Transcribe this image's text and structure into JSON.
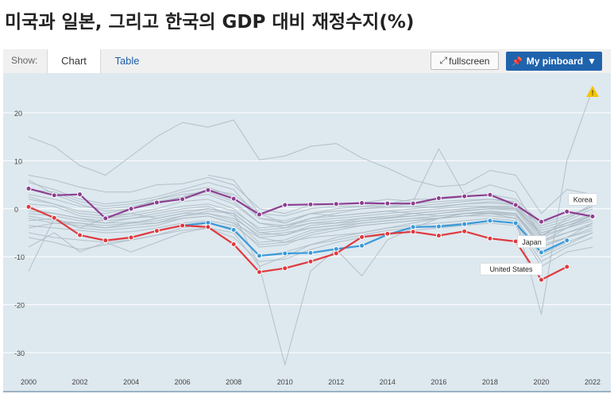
{
  "page": {
    "title": "미국과 일본, 그리고 한국의 GDP 대비 재정수지(%)"
  },
  "toolbar": {
    "show_label": "Show:",
    "tabs": [
      {
        "label": "Chart",
        "active": true
      },
      {
        "label": "Table",
        "active": false
      }
    ],
    "fullscreen_label": "fullscreen",
    "fullscreen_icon": "expand-icon",
    "pinboard_label": "My pinboard",
    "pinboard_icon": "pin-icon",
    "pinboard_caret": "▼",
    "pinboard_color": "#1f63ad"
  },
  "warning": {
    "icon": "warning-icon",
    "symbol": "!",
    "color": "#f5c400"
  },
  "chart_data": {
    "type": "line",
    "title": "",
    "xlabel": "",
    "ylabel": "",
    "xlim": [
      2000,
      2022
    ],
    "ylim": [
      -33,
      26
    ],
    "x_ticks": [
      2000,
      2002,
      2004,
      2006,
      2008,
      2010,
      2012,
      2014,
      2016,
      2018,
      2020,
      2022
    ],
    "y_ticks": [
      20,
      10,
      0,
      -10,
      -20,
      -30
    ],
    "grid": true,
    "background_color": "#dde8ef",
    "x": [
      2000,
      2001,
      2002,
      2003,
      2004,
      2005,
      2006,
      2007,
      2008,
      2009,
      2010,
      2011,
      2012,
      2013,
      2014,
      2015,
      2016,
      2017,
      2018,
      2019,
      2020,
      2021,
      2022
    ],
    "series": [
      {
        "name": "Korea",
        "color": "#8e3f91",
        "label_year": 2021,
        "values": [
          4.2,
          2.8,
          3.0,
          -2.0,
          0.0,
          1.3,
          2.0,
          3.9,
          2.1,
          -1.2,
          0.8,
          0.9,
          1.0,
          1.2,
          1.1,
          1.1,
          2.2,
          2.6,
          2.9,
          0.8,
          -2.7,
          -0.6,
          -1.6
        ]
      },
      {
        "name": "Japan",
        "color": "#3a9ad9",
        "label_year": 2020,
        "values": [
          null,
          null,
          null,
          null,
          null,
          null,
          -3.5,
          -2.9,
          -4.4,
          -9.8,
          -9.3,
          -9.2,
          -8.4,
          -7.7,
          -5.4,
          -3.8,
          -3.7,
          -3.2,
          -2.5,
          -3.0,
          -9.1,
          -6.6,
          null
        ]
      },
      {
        "name": "United States",
        "color": "#e0393e",
        "label_year": 2020,
        "values": [
          0.4,
          -1.9,
          -5.5,
          -6.6,
          -6.0,
          -4.6,
          -3.5,
          -3.8,
          -7.4,
          -13.2,
          -12.4,
          -11.0,
          -9.3,
          -5.9,
          -5.2,
          -4.8,
          -5.6,
          -4.7,
          -6.2,
          -6.8,
          -14.8,
          -12.1,
          null
        ]
      }
    ],
    "background_series": [
      {
        "values": [
          15,
          13,
          9,
          7,
          11,
          15,
          18,
          17,
          18.5,
          10.2,
          11,
          13,
          13.6,
          10.6,
          8.5,
          6,
          4.6,
          5,
          8,
          7,
          -1,
          4,
          3
        ]
      },
      {
        "values": [
          7,
          6,
          4.5,
          3.5,
          3.5,
          5,
          5.2,
          6.5,
          5,
          0,
          -1,
          0.8,
          1,
          1.2,
          2,
          1.5,
          12.5,
          3,
          5,
          3.5,
          -6,
          -2,
          1
        ]
      },
      {
        "values": [
          -13,
          -2,
          -4,
          -2,
          -1,
          -2,
          -1,
          0,
          -1,
          -12,
          -32.5,
          -13,
          -8.5,
          -14,
          -6.5,
          -4,
          -2,
          -1,
          -1,
          -2,
          -22,
          10,
          25
        ]
      },
      {
        "values": [
          -8,
          -5,
          -9,
          -7,
          -9,
          -7,
          -5,
          -4,
          -5,
          -12,
          -10,
          -7.5,
          -6,
          -5,
          -4,
          -3,
          -2,
          -1,
          -0.5,
          -1,
          -8,
          -6,
          -3
        ]
      },
      {
        "values": [
          2.5,
          1,
          -0.5,
          -1,
          0,
          2,
          3,
          3.5,
          1.5,
          -3,
          -4,
          -2,
          -1,
          0,
          0.5,
          0.4,
          0.3,
          1,
          1.2,
          0.8,
          -5,
          -3.5,
          -1.5
        ]
      },
      {
        "values": [
          5.5,
          4,
          2,
          1,
          1.5,
          2.5,
          4,
          5.5,
          4,
          -2,
          -3,
          -1,
          -0.5,
          0,
          0.2,
          0.5,
          1,
          1.5,
          2,
          1.5,
          -4,
          -2.5,
          0
        ]
      },
      {
        "values": [
          -2,
          -3,
          -3.5,
          -4,
          -3.5,
          -3,
          -1.5,
          -1,
          -2.5,
          -7,
          -6.5,
          -4.5,
          -4,
          -3,
          -2.5,
          -2,
          -1.5,
          -1,
          -0.8,
          -1,
          -7,
          -5,
          -3
        ]
      },
      {
        "values": [
          -3.5,
          -4,
          -4.5,
          -5,
          -4.8,
          -4,
          -3,
          -2.5,
          -3.5,
          -7.5,
          -7,
          -6,
          -5.5,
          -5,
          -4,
          -3.5,
          -3,
          -2.5,
          -2,
          -2.5,
          -10,
          -7.5,
          -5
        ]
      },
      {
        "values": [
          -1,
          -1.5,
          -2.5,
          -3,
          -2.8,
          -2.5,
          -1.5,
          -0.5,
          -1,
          -5,
          -4.5,
          -3,
          -3,
          -2,
          -1.8,
          -1.5,
          -1,
          -0.5,
          0,
          0,
          -6,
          -4,
          -2
        ]
      },
      {
        "values": [
          1,
          0.5,
          -1.5,
          -2,
          -1.5,
          -0.5,
          0.5,
          1,
          -0.5,
          -4,
          -3.5,
          -2.5,
          -2,
          -1.5,
          -1,
          -0.5,
          0,
          0.5,
          0.5,
          0.2,
          -5.5,
          -4,
          -2.5
        ]
      },
      {
        "values": [
          -5,
          -6,
          -6.5,
          -7,
          -6.5,
          -5.5,
          -4,
          -3,
          -4,
          -10,
          -9,
          -7.5,
          -6.5,
          -5.5,
          -4.5,
          -4,
          -3.5,
          -3,
          -2.5,
          -3,
          -11,
          -8,
          -6
        ]
      },
      {
        "values": [
          0,
          -1,
          -2,
          -2.5,
          -2,
          -1,
          0,
          0.5,
          -1.5,
          -6,
          -5.5,
          -4,
          -3.5,
          -2.5,
          -2,
          -1.5,
          -1,
          -0.3,
          0,
          -0.3,
          -6.5,
          -5,
          -3.5
        ]
      },
      {
        "values": [
          3,
          2,
          0.5,
          0,
          0.5,
          1.5,
          2.5,
          3,
          1,
          -3,
          -3.5,
          -2,
          -1.5,
          -1,
          -0.5,
          0,
          0.5,
          1,
          1.5,
          1,
          -4.5,
          -3,
          -1
        ]
      },
      {
        "values": [
          -1.5,
          -2.5,
          -3,
          -3.5,
          -3,
          -2,
          -1,
          -1,
          -2,
          -5.5,
          -5,
          -4,
          -3.5,
          -3,
          -2.5,
          -2,
          -2,
          -1.5,
          -1,
          -1.5,
          -8,
          -6,
          -4
        ]
      },
      {
        "values": [
          6,
          3,
          1,
          -0.5,
          0,
          1,
          2.5,
          4,
          3,
          -1,
          -1.5,
          0,
          0.5,
          0.5,
          1,
          2,
          2,
          2.5,
          3,
          2,
          -3,
          -1.5,
          0.5
        ]
      },
      {
        "values": [
          -4,
          -3,
          -3,
          -4,
          -3,
          -3,
          -2,
          -1.5,
          -3,
          -6,
          -7,
          -5,
          -4,
          -3.5,
          -3,
          -2.5,
          -2,
          -1.5,
          -1,
          -1.2,
          -7.5,
          -6,
          -4.5
        ]
      },
      {
        "values": [
          -2.5,
          -2,
          -4,
          -4.5,
          -4,
          -3.5,
          -2,
          -1.5,
          -3,
          -8,
          -7.5,
          -5.5,
          -4.5,
          -3.5,
          -3,
          -2.5,
          -2,
          -1.5,
          -1.5,
          -2,
          -9.5,
          -7,
          -5
        ]
      },
      {
        "values": [
          2,
          1,
          -1,
          -1.5,
          -1,
          0,
          1.5,
          2,
          0,
          -4.5,
          -4,
          -3,
          -2.5,
          -2,
          -1.5,
          -1,
          -0.5,
          0,
          0.3,
          0,
          -5,
          -3.5,
          -2
        ]
      },
      {
        "values": [
          -6,
          -7,
          -8.5,
          -7.5,
          -6.5,
          -5.5,
          -4.5,
          -4,
          -6,
          -11,
          -10.5,
          -8.5,
          -7,
          -6,
          -5.5,
          -4.5,
          -4,
          -3.5,
          -3,
          -3.5,
          -12,
          -9,
          -8
        ]
      },
      {
        "values": [
          4,
          3.5,
          1.5,
          0.5,
          1,
          2,
          3.5,
          4.5,
          2.5,
          -2,
          -2.5,
          -1,
          0,
          0.5,
          0.5,
          1,
          1.5,
          1.8,
          2,
          1.2,
          -3.5,
          -2,
          0.5
        ]
      },
      {
        "values": [
          -0.5,
          -1,
          -2,
          -3,
          -2,
          -1.5,
          -0.5,
          0,
          -1,
          -5,
          -5.5,
          -3.5,
          -3,
          -2.5,
          -2,
          -1,
          -0.5,
          0,
          0.5,
          0.5,
          -5.5,
          -3,
          -1.5
        ]
      },
      {
        "values": [
          null,
          null,
          null,
          null,
          null,
          null,
          null,
          7,
          6,
          -1,
          -3,
          -1,
          -1.5,
          -1,
          -0.5,
          -1,
          -1.5,
          -1,
          -0.5,
          -1,
          -7,
          -4,
          -1
        ]
      }
    ]
  }
}
